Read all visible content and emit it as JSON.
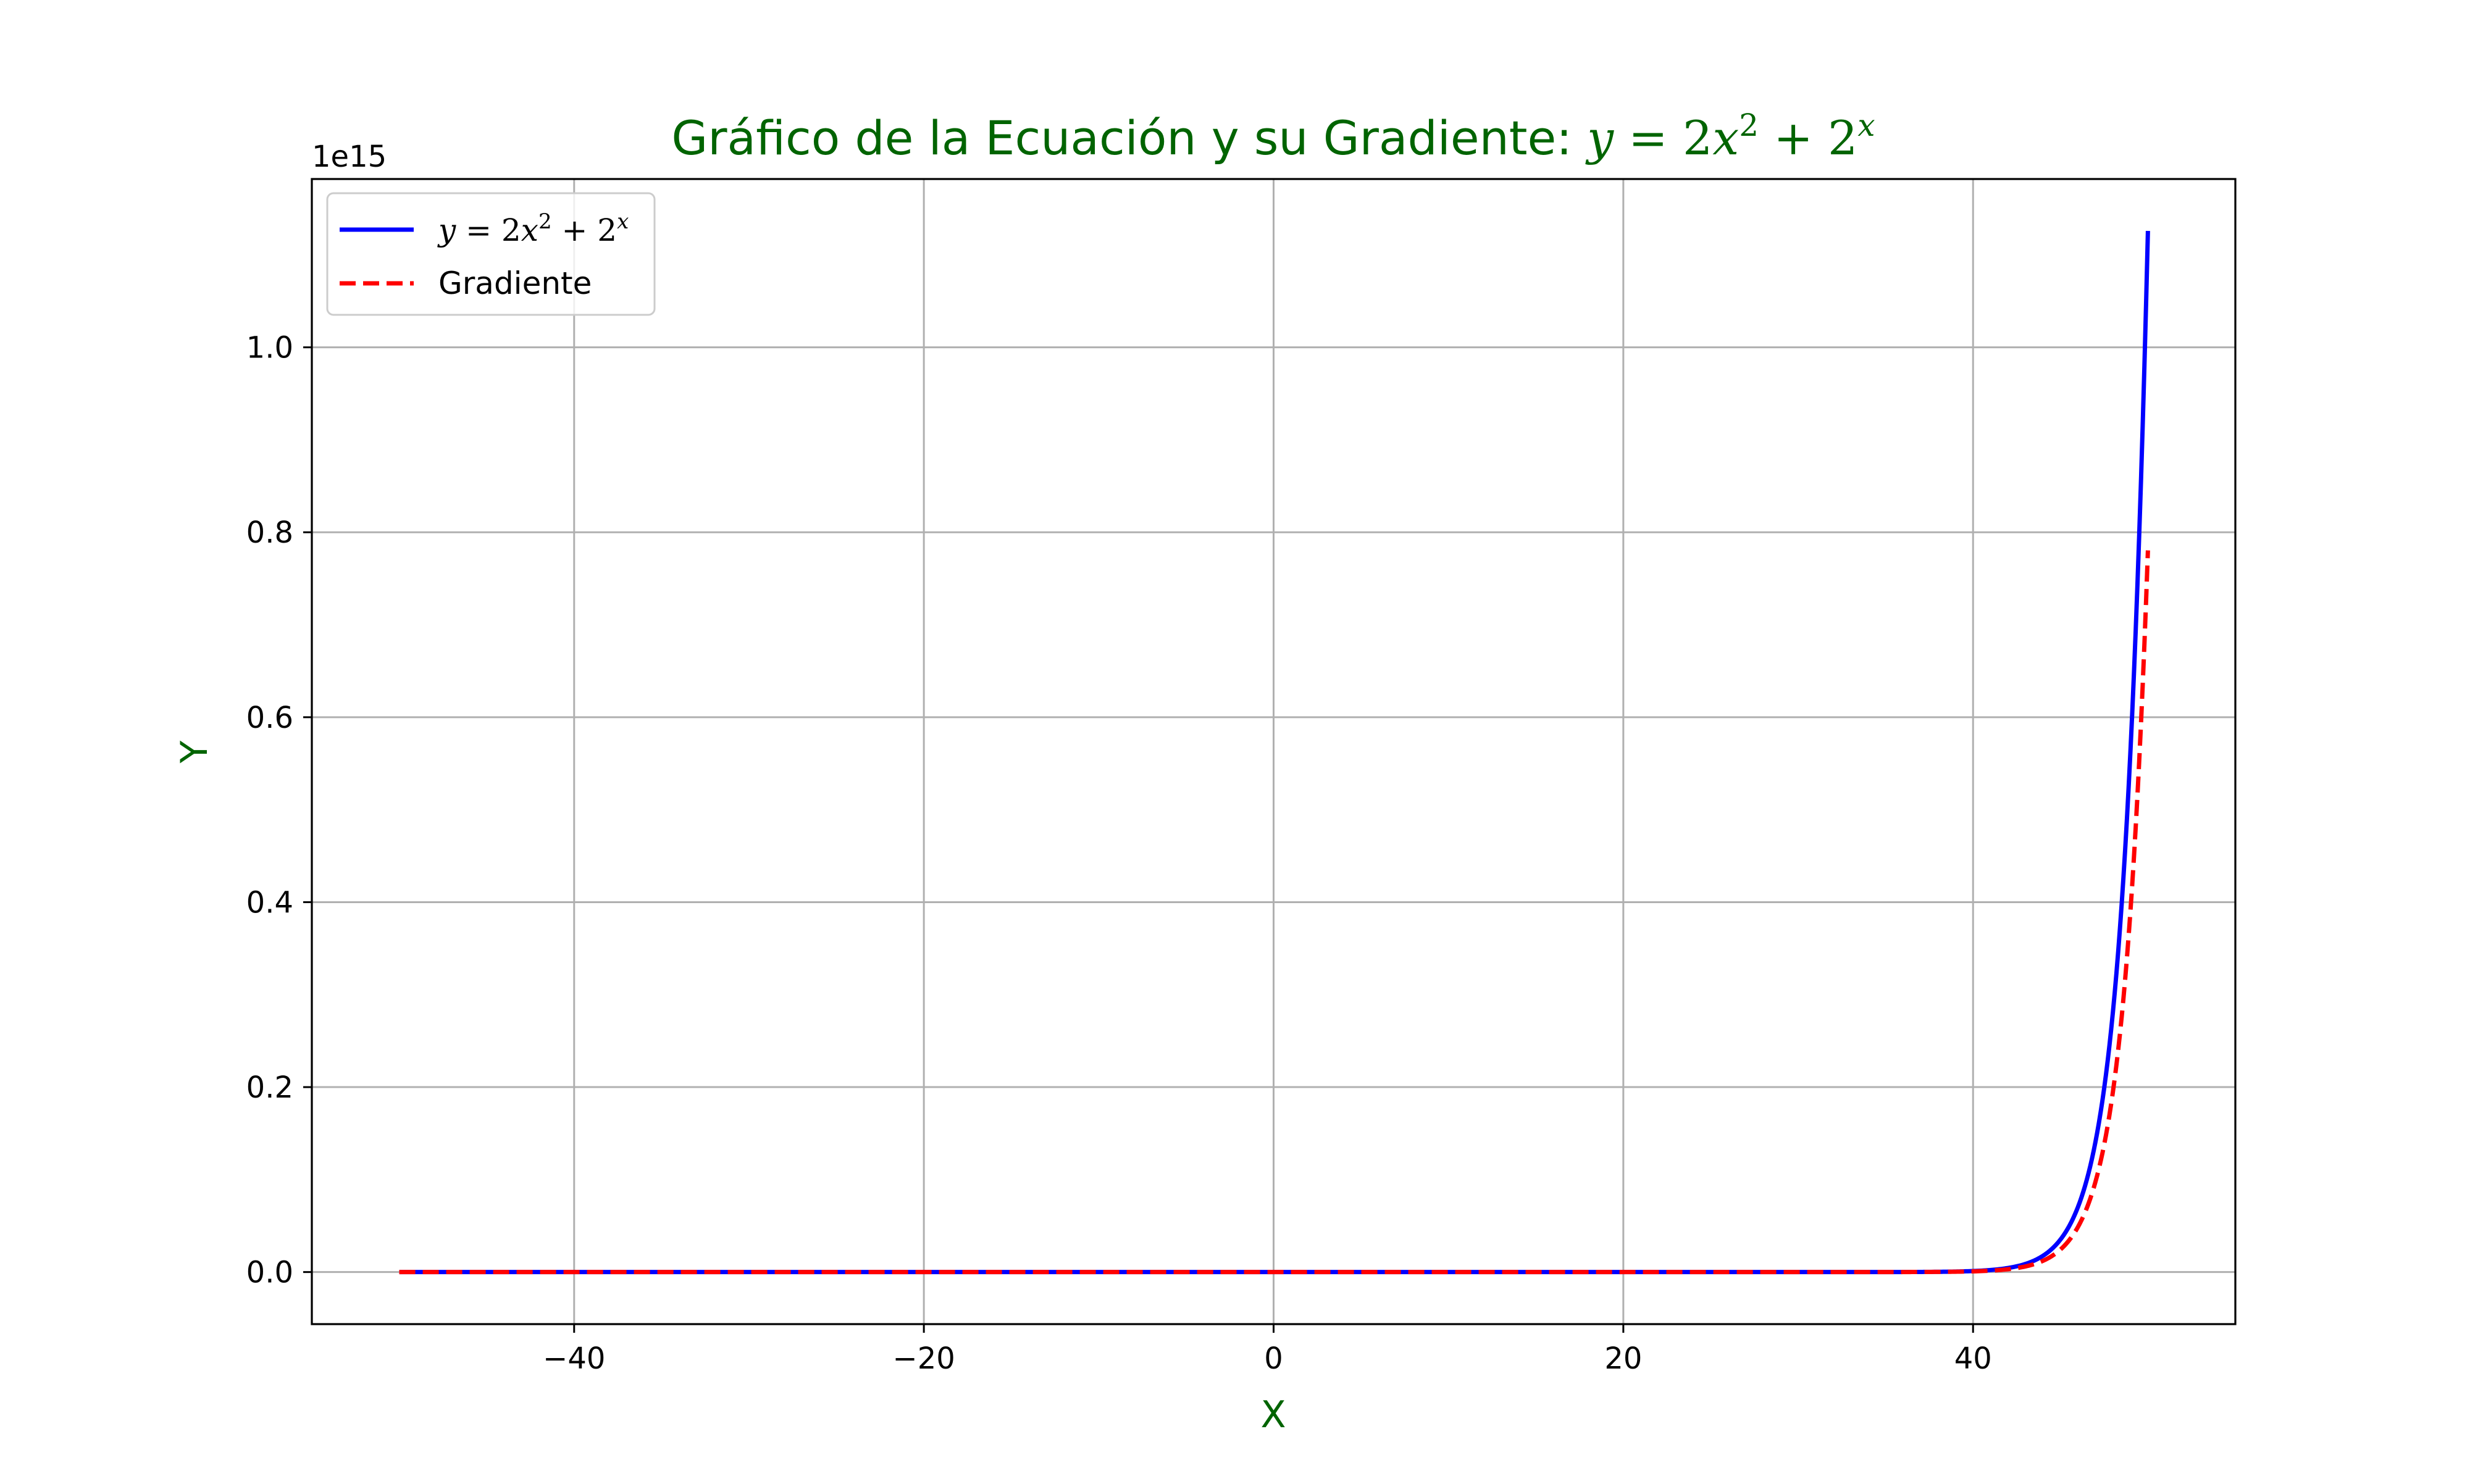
{
  "chart_data": {
    "type": "line",
    "title": {
      "prefix": "Gráfico de la Ecuación y su Gradiente: ",
      "eq_y": "y",
      "eq_equals": " = 2",
      "eq_x": "x",
      "eq_sq": "2",
      "eq_plus": " + 2",
      "eq_exp": "x"
    },
    "xlabel": "X",
    "ylabel": "Y",
    "y_offset_label": "1e15",
    "xlim": [
      -55,
      55
    ],
    "ylim": [
      -0.0563,
      1.182
    ],
    "y_scale_factor": 1000000000000000.0,
    "x_ticks": [
      -40,
      -20,
      0,
      20,
      40
    ],
    "x_tick_labels": [
      "−40",
      "−20",
      "0",
      "20",
      "40"
    ],
    "y_ticks": [
      0.0,
      0.2,
      0.4,
      0.6,
      0.8,
      1.0
    ],
    "y_tick_labels": [
      "0.0",
      "0.2",
      "0.4",
      "0.6",
      "0.8",
      "1.0"
    ],
    "grid": true,
    "legend_position": "top-left",
    "x_range": [
      -50,
      50
    ],
    "series": [
      {
        "name": "y = 2x² + 2ˣ",
        "legend": {
          "y": "y",
          "eq": " = 2",
          "x": "x",
          "sq": "2",
          "plus": " + 2",
          "exp": "x"
        },
        "function": "2*x^2 + 2^x",
        "color": "#0000ff",
        "style": "solid",
        "end_value": 1125900000000000.0
      },
      {
        "name": "Gradiente",
        "legend_label": "Gradiente",
        "function": "4*x + ln(2)*2^x",
        "color": "#ff0000",
        "style": "dashed",
        "end_value": 780400000000000.0
      }
    ],
    "colors": {
      "title": "#006400",
      "axis_label": "#006400",
      "grid": "#b0b0b0",
      "axes": "#000000"
    }
  }
}
